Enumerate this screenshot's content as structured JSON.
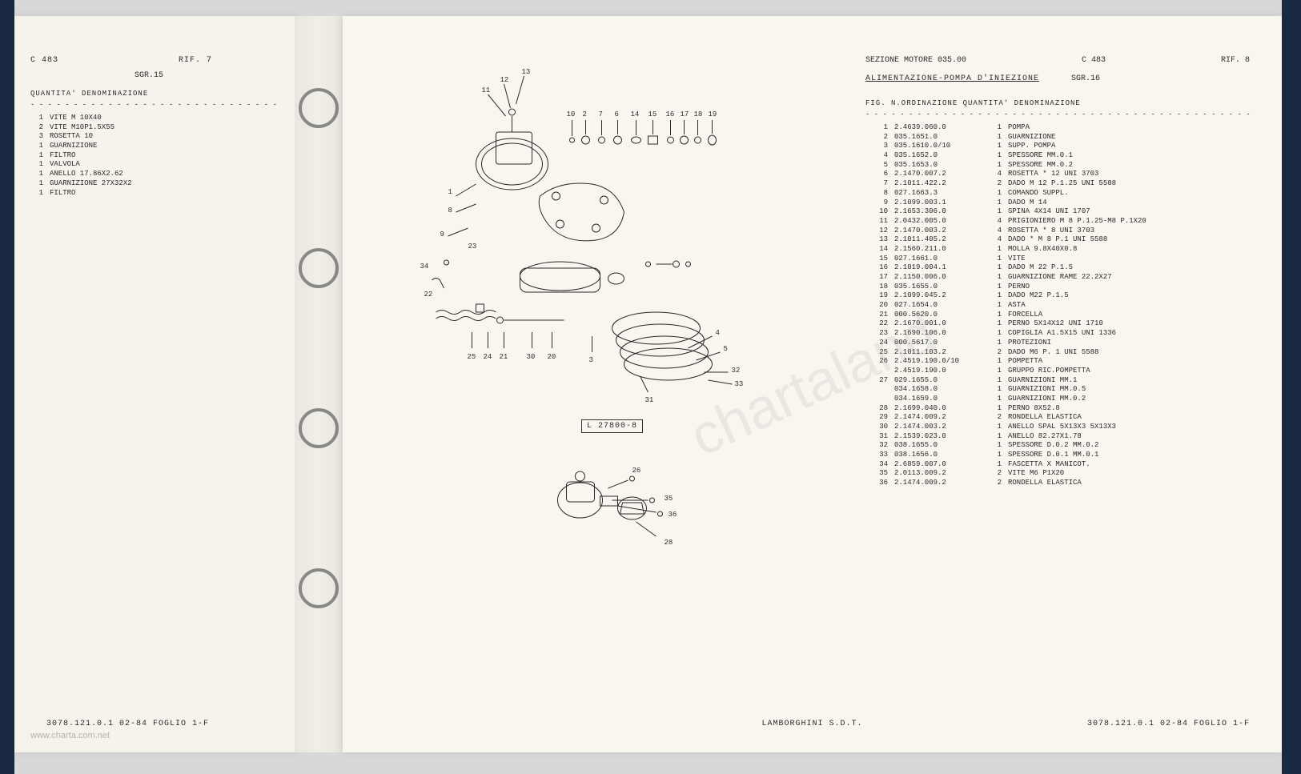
{
  "left_page": {
    "header": {
      "code": "C 483",
      "rif": "RIF.  7",
      "sgr": "SGR.15"
    },
    "columns_header": "QUANTITA' DENOMINAZIONE",
    "rows": [
      {
        "qty": "1",
        "desc": "VITE M 10X40"
      },
      {
        "qty": "2",
        "desc": "VITE M10P1.5X55"
      },
      {
        "qty": "3",
        "desc": "ROSETTA 10"
      },
      {
        "qty": "1",
        "desc": "GUARNIZIONE"
      },
      {
        "qty": "1",
        "desc": "FILTRO"
      },
      {
        "qty": "1",
        "desc": "VALVOLA"
      },
      {
        "qty": "1",
        "desc": "ANELLO 17.86X2.62"
      },
      {
        "qty": "1",
        "desc": "GUARNIZIONE 27X32X2"
      },
      {
        "qty": "1",
        "desc": "FILTRO"
      }
    ],
    "footer": "3078.121.0.1 02-84 FOGLIO  1-F"
  },
  "right_page": {
    "header_left": "SEZIONE MOTORE 035.00",
    "header_code": "C 483",
    "header_rif": "RIF.  8",
    "subtitle": "ALIMENTAZIONE-POMPA D'INIEZIONE",
    "sgr": "SGR.16",
    "columns_header": "FIG.  N.ORDINAZIONE  QUANTITA' DENOMINAZIONE",
    "rows": [
      {
        "fig": "1",
        "ord": "2.4639.060.0",
        "qty": "1",
        "desc": "POMPA"
      },
      {
        "fig": "2",
        "ord": "035.1651.0",
        "qty": "1",
        "desc": "GUARNIZIONE"
      },
      {
        "fig": "3",
        "ord": "035.1610.0/10",
        "qty": "1",
        "desc": "SUPP. POMPA"
      },
      {
        "fig": "4",
        "ord": "035.1652.0",
        "qty": "1",
        "desc": "SPESSORE MM.0.1"
      },
      {
        "fig": "5",
        "ord": "035.1653.0",
        "qty": "1",
        "desc": "SPESSORE MM.0.2"
      },
      {
        "fig": "6",
        "ord": "2.1470.007.2",
        "qty": "4",
        "desc": "ROSETTA        * 12 UNI 3703"
      },
      {
        "fig": "7",
        "ord": "2.1011.422.2",
        "qty": "2",
        "desc": "DADO M 12 P.1.25 UNI 5588"
      },
      {
        "fig": "8",
        "ord": "027.1663.3",
        "qty": "1",
        "desc": "COMANDO SUPPL."
      },
      {
        "fig": "9",
        "ord": "2.1099.003.1",
        "qty": "1",
        "desc": "DADO M 14"
      },
      {
        "fig": "10",
        "ord": "2.1653.306.0",
        "qty": "1",
        "desc": "SPINA 4X14 UNI 1707"
      },
      {
        "fig": "11",
        "ord": "2.0432.005.0",
        "qty": "4",
        "desc": "PRIGIONIERO M 8 P.1.25-M8 P.1X20"
      },
      {
        "fig": "12",
        "ord": "2.1470.003.2",
        "qty": "4",
        "desc": "ROSETTA        * 8 UNI 3703"
      },
      {
        "fig": "13",
        "ord": "2.1011.405.2",
        "qty": "4",
        "desc": "DADO           * M 8 P.1 UNI 5588"
      },
      {
        "fig": "14",
        "ord": "2.1560.211.0",
        "qty": "1",
        "desc": "MOLLA 9.8X40X0.8"
      },
      {
        "fig": "15",
        "ord": "027.1661.0",
        "qty": "1",
        "desc": "VITE"
      },
      {
        "fig": "16",
        "ord": "2.1019.004.1",
        "qty": "1",
        "desc": "DADO M 22 P.1.5"
      },
      {
        "fig": "17",
        "ord": "2.1150.006.0",
        "qty": "1",
        "desc": "GUARNIZIONE RAME 22.2X27"
      },
      {
        "fig": "18",
        "ord": "035.1655.0",
        "qty": "1",
        "desc": "PERNO"
      },
      {
        "fig": "19",
        "ord": "2.1099.045.2",
        "qty": "1",
        "desc": "DADO M22 P.1.5"
      },
      {
        "fig": "20",
        "ord": "027.1654.0",
        "qty": "1",
        "desc": "ASTA"
      },
      {
        "fig": "21",
        "ord": "000.5620.0",
        "qty": "1",
        "desc": "FORCELLA"
      },
      {
        "fig": "22",
        "ord": "2.1670.001.0",
        "qty": "1",
        "desc": "PERNO 5X14X12 UNI 1710"
      },
      {
        "fig": "23",
        "ord": "2.1690.106.0",
        "qty": "1",
        "desc": "COPIGLIA A1.5X15 UNI 1336"
      },
      {
        "fig": "24",
        "ord": "000.5617.0",
        "qty": "1",
        "desc": "PROTEZIONI"
      },
      {
        "fig": "25",
        "ord": "2.1011.103.2",
        "qty": "2",
        "desc": "DADO M6 P. 1 UNI 5588"
      },
      {
        "fig": "26",
        "ord": "2.4519.190.0/10",
        "qty": "1",
        "desc": "POMPETTA"
      },
      {
        "fig": "",
        "ord": "2.4519.190.0",
        "qty": "1",
        "desc": "GRUPPO RIC.POMPETTA"
      },
      {
        "fig": "27",
        "ord": "029.1655.0",
        "qty": "1",
        "desc": "GUARNIZIONI MM.1"
      },
      {
        "fig": "",
        "ord": "034.1658.0",
        "qty": "1",
        "desc": "GUARNIZIONI MM.0.5"
      },
      {
        "fig": "",
        "ord": "034.1659.0",
        "qty": "1",
        "desc": "GUARNIZIONI MM.0.2"
      },
      {
        "fig": "28",
        "ord": "2.1699.040.0",
        "qty": "1",
        "desc": "PERNO 8X52.8"
      },
      {
        "fig": "29",
        "ord": "2.1474.009.2",
        "qty": "2",
        "desc": "RONDELLA ELASTICA"
      },
      {
        "fig": "30",
        "ord": "2.1474.003.2",
        "qty": "1",
        "desc": "ANELLO SPAL 5X13X3 5X13X3"
      },
      {
        "fig": "31",
        "ord": "2.1539.023.0",
        "qty": "1",
        "desc": "ANELLO 82.27X1.78"
      },
      {
        "fig": "32",
        "ord": "038.1655.0",
        "qty": "1",
        "desc": "SPESSORE D.0.2 MM.0.2"
      },
      {
        "fig": "33",
        "ord": "038.1656.0",
        "qty": "1",
        "desc": "SPESSORE D.0.1 MM.0.1"
      },
      {
        "fig": "34",
        "ord": "2.6859.007.0",
        "qty": "1",
        "desc": "FASCETTA X MANICOT."
      },
      {
        "fig": "35",
        "ord": "2.0113.009.2",
        "qty": "2",
        "desc": "VITE M6 P1X20"
      },
      {
        "fig": "36",
        "ord": "2.1474.009.2",
        "qty": "2",
        "desc": "RONDELLA ELASTICA"
      }
    ],
    "diagram_code": "L 27800-8",
    "footer_center": "LAMBORGHINI S.D.T.",
    "footer_right": "3078.121.0.1 02-84 FOGLIO  1-F"
  },
  "watermark": "chartaland",
  "watermark_domain": "www.charta.com.net",
  "diagram": {
    "callout_numbers_top": [
      "13",
      "12",
      "11",
      "10",
      "2",
      "7",
      "6",
      "14",
      "15",
      "16",
      "17",
      "18",
      "19"
    ],
    "callout_numbers_side": [
      "1",
      "8",
      "9",
      "22",
      "23",
      "34"
    ],
    "callout_numbers_bottom": [
      "25",
      "24",
      "21",
      "30",
      "20",
      "3",
      "31",
      "4",
      "5",
      "32",
      "33"
    ],
    "callout_numbers_pump": [
      "26",
      "35",
      "36",
      "28"
    ],
    "colors": {
      "stroke": "#2a2a2a",
      "fill": "#f8f6ef"
    }
  }
}
